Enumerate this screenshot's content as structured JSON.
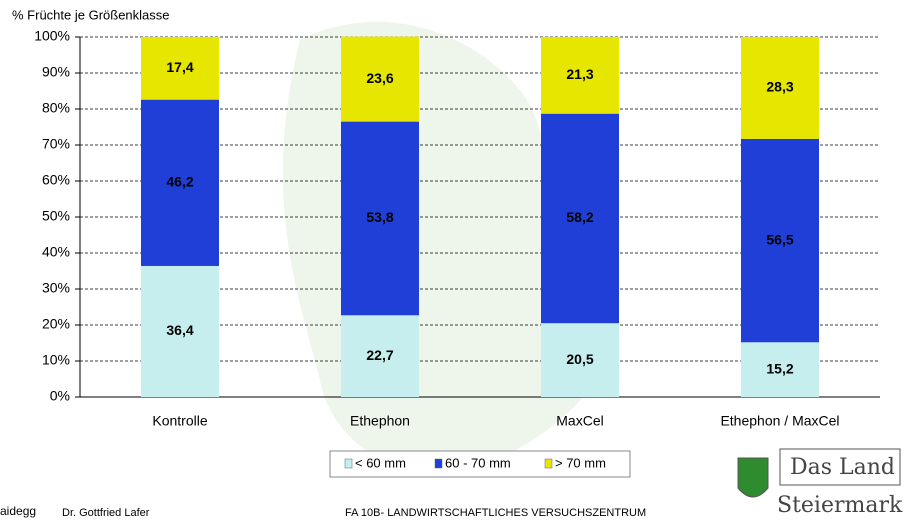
{
  "chart_data": {
    "type": "stacked-bar",
    "y_label": "% Früchte je Größenklasse",
    "categories": [
      "Kontrolle",
      "Ethephon",
      "MaxCel",
      "Ethephon / MaxCel"
    ],
    "series": [
      {
        "name": "< 60 mm",
        "color": "#c6eeee",
        "values": [
          36.4,
          22.7,
          20.5,
          15.2
        ],
        "value_labels": [
          "36,4",
          "22,7",
          "20,5",
          "15,2"
        ]
      },
      {
        "name": "60 - 70 mm",
        "color": "#1f3fd6",
        "values": [
          46.2,
          53.8,
          58.2,
          56.5
        ],
        "value_labels": [
          "46,2",
          "53,8",
          "58,2",
          "56,5"
        ]
      },
      {
        "name": "> 70 mm",
        "color": "#e6e600",
        "values": [
          17.4,
          23.6,
          21.3,
          28.3
        ],
        "value_labels": [
          "17,4",
          "23,6",
          "21,3",
          "28,3"
        ]
      }
    ],
    "ylim": [
      0,
      100
    ],
    "yticks": [
      {
        "value": 0,
        "label": "0%"
      },
      {
        "value": 10,
        "label": "10%"
      },
      {
        "value": 20,
        "label": "20%"
      },
      {
        "value": 30,
        "label": "30%"
      },
      {
        "value": 40,
        "label": "40%"
      },
      {
        "value": 50,
        "label": "50%"
      },
      {
        "value": 60,
        "label": "60%"
      },
      {
        "value": 70,
        "label": "70%"
      },
      {
        "value": 80,
        "label": "80%"
      },
      {
        "value": 90,
        "label": "90%"
      },
      {
        "value": 100,
        "label": "100%"
      }
    ],
    "grid": true
  },
  "footer": {
    "left_fragment": "aidegg",
    "author": "Dr. Gottfried Lafer",
    "institution": "FA 10B- LANDWIRTSCHAFTLICHES VERSUCHSZENTRUM",
    "logo_line1": "Das Land",
    "logo_line2": "Steiermark"
  }
}
